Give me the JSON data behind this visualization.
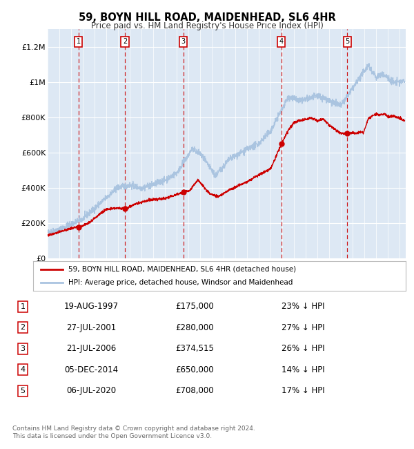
{
  "title": "59, BOYN HILL ROAD, MAIDENHEAD, SL6 4HR",
  "subtitle": "Price paid vs. HM Land Registry's House Price Index (HPI)",
  "legend_line1": "59, BOYN HILL ROAD, MAIDENHEAD, SL6 4HR (detached house)",
  "legend_line2": "HPI: Average price, detached house, Windsor and Maidenhead",
  "footer": "Contains HM Land Registry data © Crown copyright and database right 2024.\nThis data is licensed under the Open Government Licence v3.0.",
  "hpi_color": "#aac4e0",
  "price_color": "#cc0000",
  "background_color": "#dde8f4",
  "transactions": [
    {
      "num": 1,
      "date": 1997.64,
      "price": 175000,
      "label": "19-AUG-1997",
      "pct": "23% ↓ HPI"
    },
    {
      "num": 2,
      "date": 2001.58,
      "price": 280000,
      "label": "27-JUL-2001",
      "pct": "27% ↓ HPI"
    },
    {
      "num": 3,
      "date": 2006.55,
      "price": 374515,
      "label": "21-JUL-2006",
      "pct": "26% ↓ HPI"
    },
    {
      "num": 4,
      "date": 2014.92,
      "price": 650000,
      "label": "05-DEC-2014",
      "pct": "14% ↓ HPI"
    },
    {
      "num": 5,
      "date": 2020.51,
      "price": 708000,
      "label": "06-JUL-2020",
      "pct": "17% ↓ HPI"
    }
  ],
  "ylim": [
    0,
    1300000
  ],
  "xlim_start": 1995.0,
  "xlim_end": 2025.5,
  "yticks": [
    0,
    200000,
    400000,
    600000,
    800000,
    1000000,
    1200000
  ],
  "ylabels": [
    "£0",
    "£200K",
    "£400K",
    "£600K",
    "£800K",
    "£1M",
    "£1.2M"
  ]
}
